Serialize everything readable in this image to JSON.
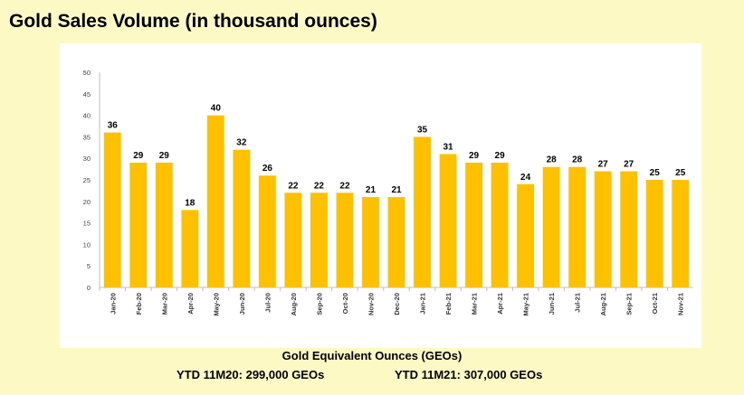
{
  "page": {
    "title": "Gold Sales Volume (in thousand ounces)",
    "caption": "Gold Equivalent Ounces (GEOs)",
    "ytd_left": "YTD 11M20: 299,000 GEOs",
    "ytd_right": "YTD 11M21: 307,000 GEOs"
  },
  "chart_data": {
    "type": "bar",
    "title": "",
    "xlabel": "",
    "ylabel": "",
    "categories": [
      "Jan-20",
      "Feb-20",
      "Mar-20",
      "Apr-20",
      "May-20",
      "Jun-20",
      "Jul-20",
      "Aug-20",
      "Sep-20",
      "Oct-20",
      "Nov-20",
      "Dec-20",
      "Jan-21",
      "Feb-21",
      "Mar-21",
      "Apr-21",
      "May-21",
      "Jun-21",
      "Jul-21",
      "Aug-21",
      "Sep-21",
      "Oct-21",
      "Nov-21"
    ],
    "values": [
      36,
      29,
      29,
      18,
      40,
      32,
      26,
      22,
      22,
      22,
      21,
      21,
      35,
      31,
      29,
      29,
      24,
      28,
      28,
      27,
      27,
      25,
      25
    ],
    "ylim": [
      0,
      50
    ],
    "yticks": [
      0,
      5,
      10,
      15,
      20,
      25,
      30,
      35,
      40,
      45,
      50
    ],
    "grid": false,
    "legend": "none",
    "bar_color": "#ffc000",
    "data_labels": true
  }
}
